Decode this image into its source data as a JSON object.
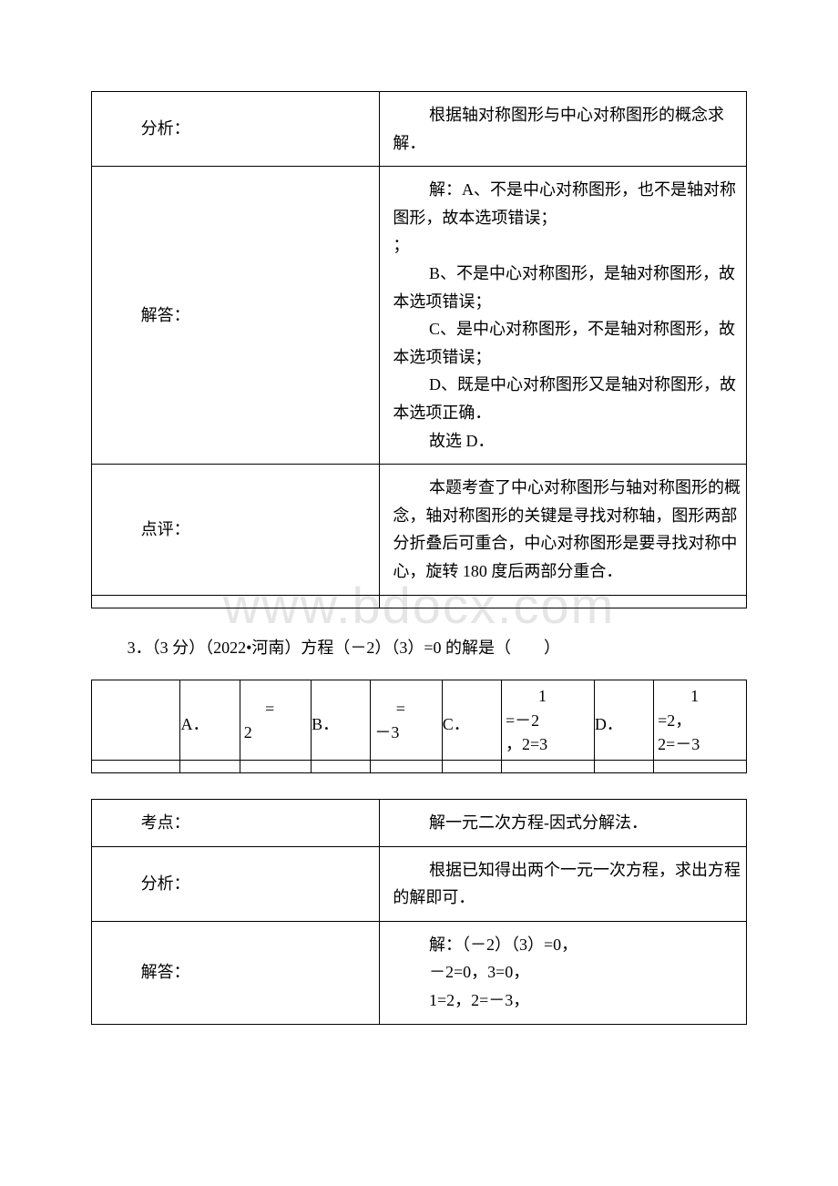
{
  "watermark": "www.bdocx.com",
  "table1": {
    "row_analysis": {
      "label": "分析：",
      "content": [
        "根据轴对称图形与中心对称图形的概念求解．"
      ]
    },
    "row_answer": {
      "label": "解答：",
      "content": [
        "解：A、不是中心对称图形，也不是轴对称图形，故本选项错误；",
        "B、不是中心对称图形，是轴对称图形，故本选项错误；",
        "C、是中心对称图形，不是轴对称图形，故本选项错误；",
        "D、既是中心对称图形又是轴对称图形，故本选项正确．",
        "故选 D．"
      ],
      "content_cont": [
        "；"
      ]
    },
    "row_review": {
      "label": "点评：",
      "content": [
        "本题考查了中心对称图形与轴对称图形的概念，轴对称图形的关键是寻找对称轴，图形两部分折叠后可重合，中心对称图形是要寻找对称中心，旋转 180 度后两部分重合．"
      ]
    }
  },
  "question": "3．（3 分）（2022•河南）方程（－2）（3）=0 的解是（　　）",
  "options": {
    "A": {
      "letter": "A．",
      "val_l1": "",
      "val_l2": "2",
      "val_prefix": "="
    },
    "B": {
      "letter": "B．",
      "val_l1": "",
      "val_l2": "－3",
      "val_prefix": "="
    },
    "C": {
      "letter": "C．",
      "val_l1": "　　1",
      "val_l2": "=－2",
      "val_l3": "，2=3"
    },
    "D": {
      "letter": "D．",
      "val_l1": "　　1",
      "val_l2": "=2，",
      "val_l3": "2=－3"
    }
  },
  "table2": {
    "row_topic": {
      "label": "考点：",
      "content": [
        "解一元二次方程-因式分解法．"
      ]
    },
    "row_analysis": {
      "label": "分析：",
      "content": [
        "根据已知得出两个一元一次方程，求出方程的解即可．"
      ]
    },
    "row_answer": {
      "label": "解答：",
      "content": [
        "解：（－2）（3）=0，",
        "－2=0，3=0，",
        "1=2，2=－3，"
      ]
    }
  }
}
